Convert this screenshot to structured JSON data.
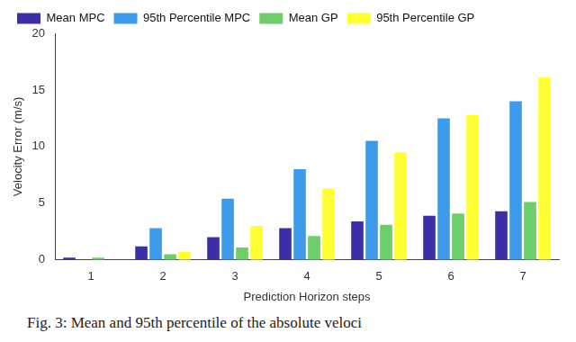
{
  "chart_data": {
    "type": "bar",
    "x_label": "Prediction Horizon steps",
    "y_label": "Velocity Error (m/s)",
    "caption": "Fig. 3: Mean and 95th percentile of the absolute veloci",
    "categories": [
      "1",
      "2",
      "3",
      "4",
      "5",
      "6",
      "7"
    ],
    "series": [
      {
        "name": "Mean MPC",
        "color": "#3a2fa3",
        "values": [
          0.2,
          1.2,
          2.0,
          2.8,
          3.4,
          3.9,
          4.3
        ]
      },
      {
        "name": "95th Percentile MPC",
        "color": "#3d9be9",
        "values": [
          0,
          2.8,
          5.4,
          8.0,
          10.5,
          12.5,
          14.0
        ]
      },
      {
        "name": "Mean GP",
        "color": "#6fcc6a",
        "values": [
          0.2,
          0.5,
          1.1,
          2.1,
          3.1,
          4.1,
          5.1
        ]
      },
      {
        "name": "95th Percentile GP",
        "color": "#ffff33",
        "values": [
          0,
          0.7,
          3.0,
          6.3,
          9.5,
          12.8,
          16.1
        ]
      }
    ],
    "ylim": [
      0,
      20
    ],
    "yticks": [
      0,
      5,
      10,
      15,
      20
    ],
    "grid": false,
    "legend": "top left"
  }
}
